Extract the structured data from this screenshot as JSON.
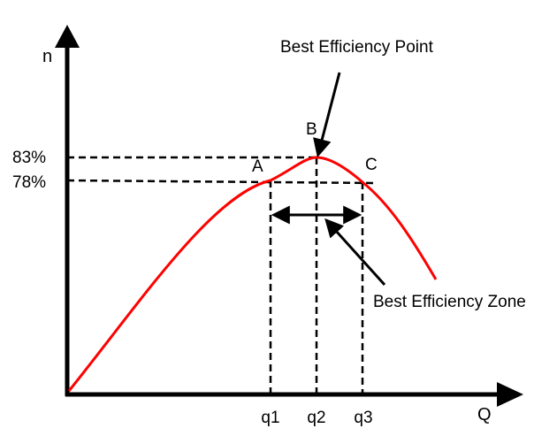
{
  "chart_data": {
    "type": "line",
    "title": "",
    "xlabel": "Q",
    "ylabel": "n",
    "x_ticks": [
      "q1",
      "q2",
      "q3"
    ],
    "y_ticks": [
      "83%",
      "78%"
    ],
    "points": [
      {
        "label": "A",
        "x": "q1",
        "y": "78%"
      },
      {
        "label": "B",
        "x": "q2",
        "y": "83%"
      },
      {
        "label": "C",
        "x": "q3",
        "y": "78%"
      }
    ],
    "annotations": [
      {
        "text": "Best Efficiency Point",
        "target": "B"
      },
      {
        "text": "Best Efficiency Zone",
        "target": "q1-q3 range"
      }
    ],
    "grid": false,
    "curve_color": "#ff0000"
  }
}
